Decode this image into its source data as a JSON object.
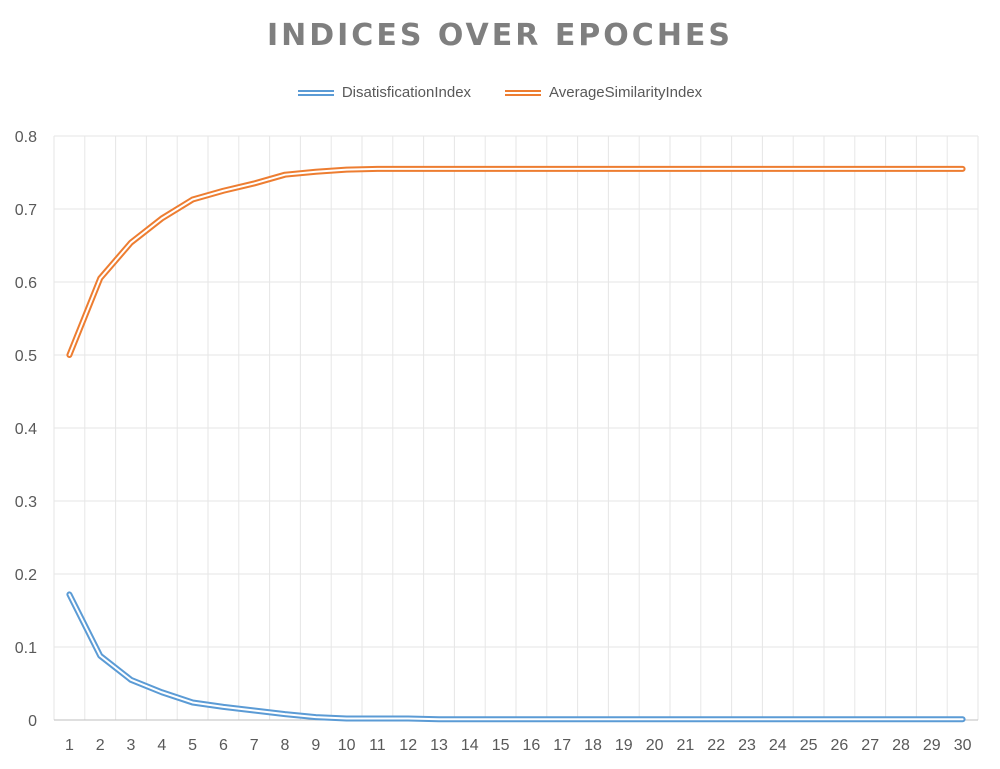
{
  "chart_data": {
    "type": "line",
    "title": "INDICES OVER EPOCHES",
    "xlabel": "",
    "ylabel": "",
    "x": [
      1,
      2,
      3,
      4,
      5,
      6,
      7,
      8,
      9,
      10,
      11,
      12,
      13,
      14,
      15,
      16,
      17,
      18,
      19,
      20,
      21,
      22,
      23,
      24,
      25,
      26,
      27,
      28,
      29,
      30
    ],
    "ylim": [
      0,
      0.8
    ],
    "yticks": [
      "0",
      "0.1",
      "0.2",
      "0.3",
      "0.4",
      "0.5",
      "0.6",
      "0.7",
      "0.8"
    ],
    "grid": true,
    "legend_position": "top",
    "series": [
      {
        "name": "DisatisficationIndex",
        "color": "#5b9bd5",
        "values": [
          0.172,
          0.088,
          0.055,
          0.038,
          0.024,
          0.018,
          0.013,
          0.008,
          0.004,
          0.002,
          0.002,
          0.002,
          0.001,
          0.001,
          0.001,
          0.001,
          0.001,
          0.001,
          0.001,
          0.001,
          0.001,
          0.001,
          0.001,
          0.001,
          0.001,
          0.001,
          0.001,
          0.001,
          0.001,
          0.001
        ]
      },
      {
        "name": "AverageSimilarityIndex",
        "color": "#ed7d31",
        "values": [
          0.5,
          0.605,
          0.654,
          0.687,
          0.713,
          0.725,
          0.735,
          0.747,
          0.751,
          0.754,
          0.755,
          0.755,
          0.755,
          0.755,
          0.755,
          0.755,
          0.755,
          0.755,
          0.755,
          0.755,
          0.755,
          0.755,
          0.755,
          0.755,
          0.755,
          0.755,
          0.755,
          0.755,
          0.755,
          0.755
        ]
      }
    ]
  }
}
